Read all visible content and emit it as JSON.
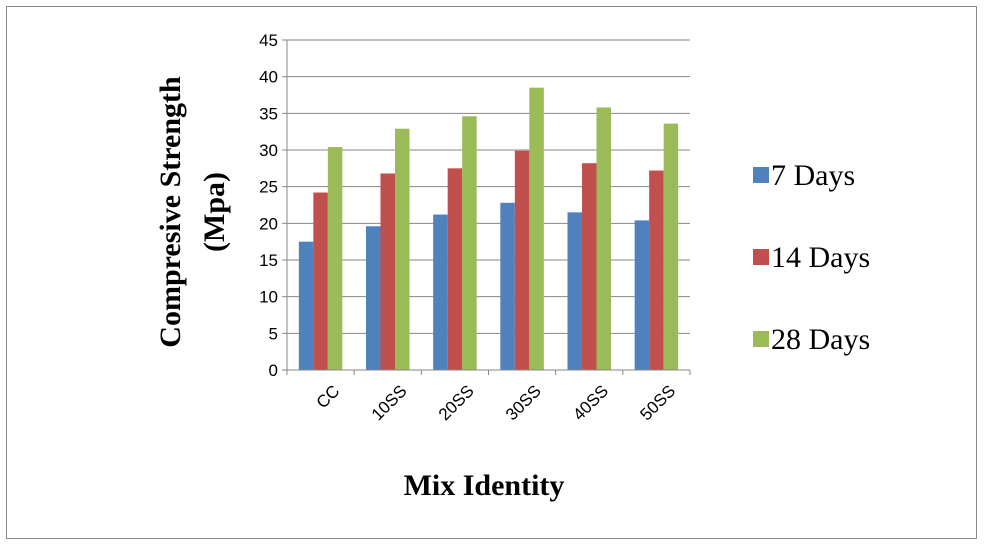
{
  "chart_data": {
    "type": "bar",
    "categories": [
      "CC",
      "10SS",
      "20SS",
      "30SS",
      "40SS",
      "50SS"
    ],
    "series": [
      {
        "name": "7 Days",
        "color": "#4f81bd",
        "values": [
          17.5,
          19.6,
          21.2,
          22.8,
          21.5,
          20.4
        ]
      },
      {
        "name": "14 Days",
        "color": "#c0504d",
        "values": [
          24.2,
          26.8,
          27.5,
          29.9,
          28.2,
          27.2
        ]
      },
      {
        "name": "28 Days",
        "color": "#9bbb59",
        "values": [
          30.4,
          32.9,
          34.6,
          38.5,
          35.8,
          33.6
        ]
      }
    ],
    "title": "",
    "xlabel": "Mix Identity",
    "ylabel": "Compresive  Strength (Mpa)",
    "ylabel_lines": [
      "Compresive  Strength",
      "(Mpa)"
    ],
    "ylim": [
      0,
      45
    ],
    "yticks": [
      0,
      5,
      10,
      15,
      20,
      25,
      30,
      35,
      40,
      45
    ],
    "grid": true,
    "legend_position": "right"
  }
}
